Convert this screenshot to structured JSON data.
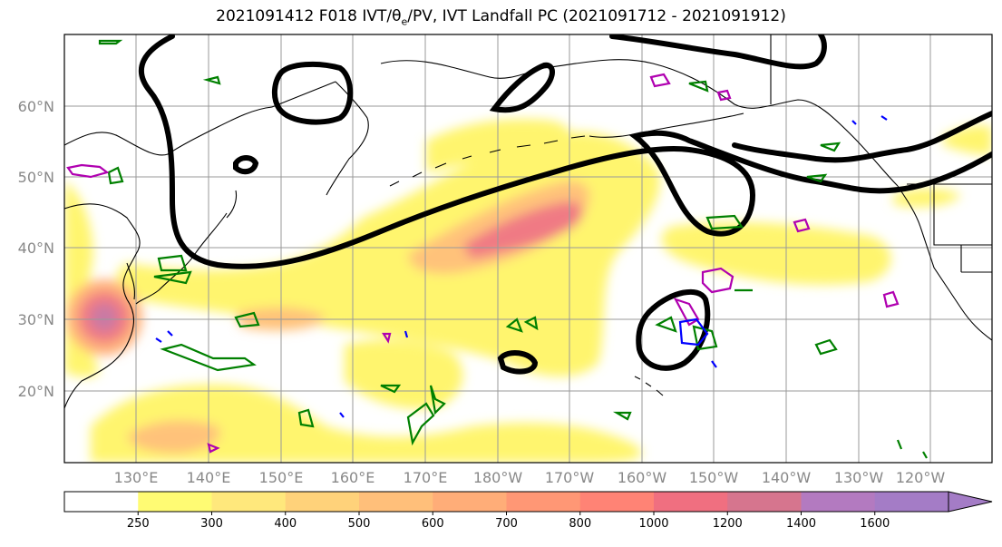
{
  "title": {
    "prefix": "2021091412 F018 IVT/θ",
    "sub": "e",
    "suffix": "/PV, IVT Landfall PC (2021091712 - 2021091912)"
  },
  "lat_labels": [
    "60°N",
    "50°N",
    "40°N",
    "30°N",
    "20°N"
  ],
  "lon_labels": [
    "130°E",
    "140°E",
    "150°E",
    "160°E",
    "170°E",
    "180°W",
    "170°W",
    "160°W",
    "150°W",
    "140°W",
    "130°W",
    "120°W"
  ],
  "colorbar": {
    "labels": [
      "250",
      "300",
      "400",
      "500",
      "600",
      "700",
      "800",
      "1000",
      "1200",
      "1400",
      "1600"
    ],
    "colors": [
      "#ffffff",
      "#fffb73",
      "#ffe87c",
      "#ffd27a",
      "#ffbf7a",
      "#ffad78",
      "#ff9775",
      "#ff8375",
      "#f06f80",
      "#d6758e",
      "#b37ac0",
      "#a47cc6"
    ]
  },
  "legend_colors": {
    "pv": "#008000",
    "theta_e_hi": "#b000b0",
    "theta_e_lo": "#0000ff",
    "pc_contour": "#000000",
    "coast": "#000000"
  }
}
